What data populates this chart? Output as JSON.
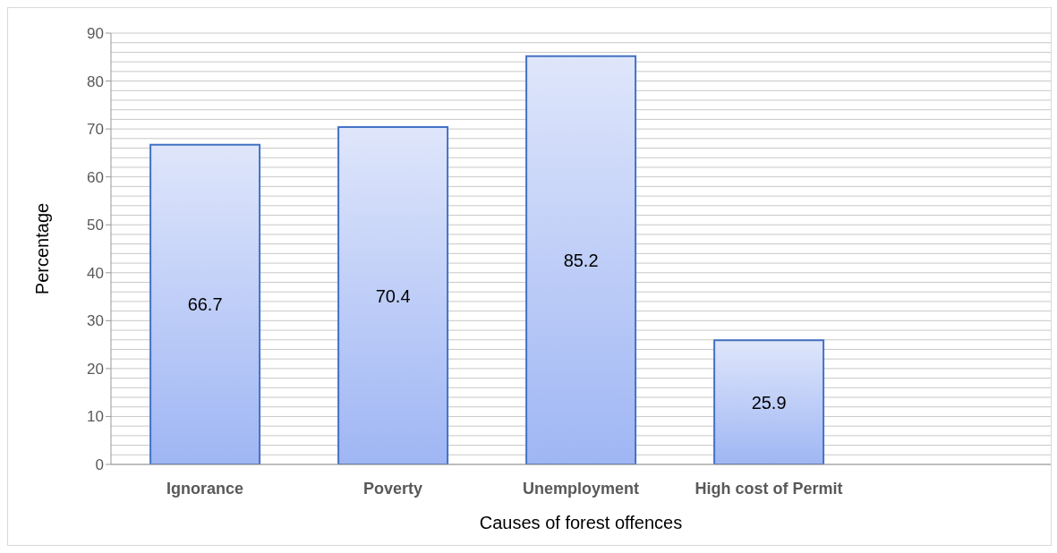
{
  "chart_data": {
    "type": "bar",
    "xlabel": "Causes of forest offences",
    "ylabel": "Percentage",
    "categories": [
      "Ignorance",
      "Poverty",
      "Unemployment",
      "High cost of Permit",
      null
    ],
    "values": [
      66.7,
      70.4,
      85.2,
      25.9,
      null
    ],
    "color": "#4472c4",
    "ylim": [
      0,
      90
    ],
    "yticks": [
      0,
      {
        "value": 2,
        "label": null
      },
      {
        "value": 4,
        "label": null
      },
      {
        "value": 6,
        "label": null
      },
      {
        "value": 8,
        "label": null
      },
      10,
      {
        "value": 12,
        "label": null
      },
      {
        "value": 14,
        "label": null
      },
      {
        "value": 16,
        "label": null
      },
      {
        "value": 18,
        "label": null
      },
      20,
      {
        "value": 22,
        "label": null
      },
      {
        "value": 24,
        "label": null
      },
      {
        "value": 26,
        "label": null
      },
      {
        "value": 28,
        "label": null
      },
      30,
      {
        "value": 32,
        "label": null
      },
      {
        "value": 34,
        "label": null
      },
      {
        "value": 36,
        "label": null
      },
      {
        "value": 38,
        "label": null
      },
      40,
      {
        "value": 42,
        "label": null
      },
      {
        "value": 44,
        "label": null
      },
      {
        "value": 46,
        "label": null
      },
      {
        "value": 48,
        "label": null
      },
      50,
      {
        "value": 52,
        "label": null
      },
      {
        "value": 54,
        "label": null
      },
      {
        "value": 56,
        "label": null
      },
      {
        "value": 58,
        "label": null
      },
      60,
      {
        "value": 62,
        "label": null
      },
      {
        "value": 64,
        "label": null
      },
      {
        "value": 66,
        "label": null
      },
      {
        "value": 68,
        "label": null
      },
      70,
      {
        "value": 72,
        "label": null
      },
      {
        "value": 74,
        "label": null
      },
      {
        "value": 76,
        "label": null
      },
      {
        "value": 78,
        "label": null
      },
      80,
      {
        "value": 82,
        "label": null
      },
      {
        "value": 84,
        "label": null
      },
      {
        "value": 86,
        "label": null
      },
      {
        "value": 88,
        "label": null
      },
      90
    ],
    "grid": "y",
    "data_labels": true
  }
}
